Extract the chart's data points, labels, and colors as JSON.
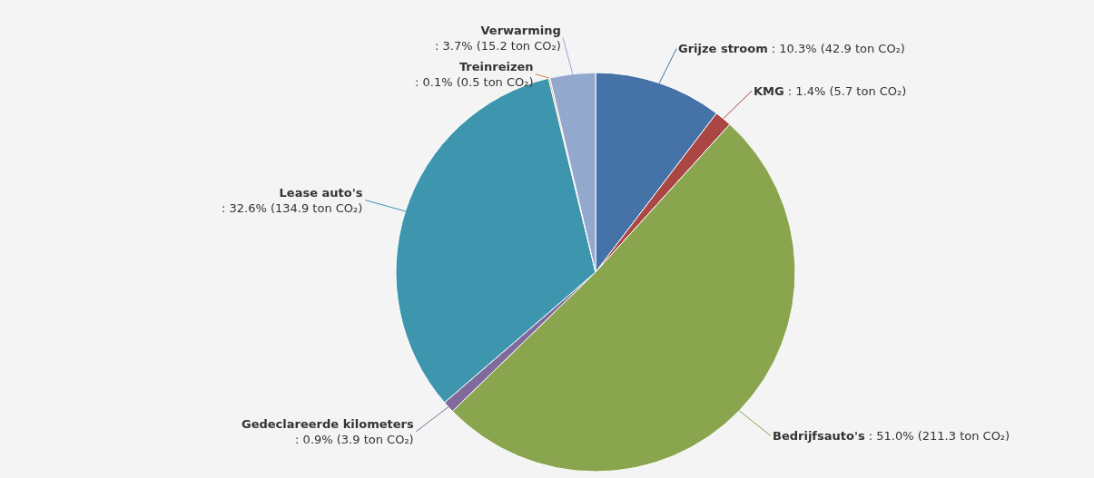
{
  "chart_data": {
    "type": "pie",
    "categories": [
      "Grijze stroom",
      "KMG",
      "Bedrijfsauto's",
      "Gedeclareerde kilometers",
      "Lease auto's",
      "Treinreizen",
      "Verwarming"
    ],
    "values": [
      42.9,
      5.7,
      211.3,
      3.9,
      134.9,
      0.5,
      15.2
    ],
    "value_labels": [
      ": 10.3% (42.9 ton CO₂)",
      ": 1.4% (5.7 ton CO₂)",
      ": 51.0% (211.3 ton CO₂)",
      ": 0.9% (3.9 ton CO₂)",
      ": 32.6% (134.9 ton CO₂)",
      ": 0.1% (0.5 ton CO₂)",
      ": 3.7% (15.2 ton CO₂)"
    ],
    "colors": [
      "#4572a7",
      "#aa4643",
      "#89a54e",
      "#80699b",
      "#3d96ae",
      "#db843d",
      "#92a8cd"
    ]
  }
}
